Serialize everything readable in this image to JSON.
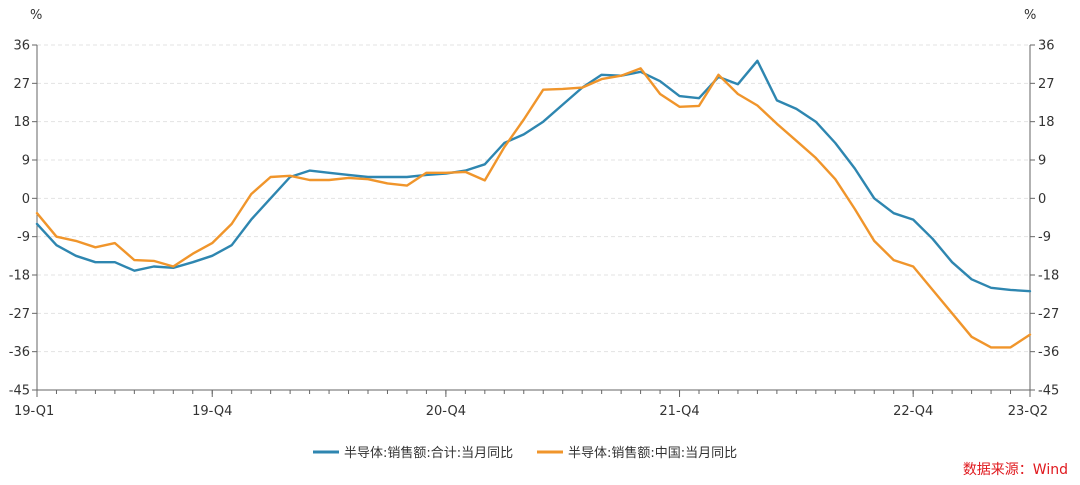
{
  "chart_data": {
    "type": "line",
    "left_unit": "%",
    "right_unit": "%",
    "y_ticks": [
      "36",
      "27",
      "18",
      "9",
      "0",
      "-9",
      "-18",
      "-27",
      "-36",
      "-45"
    ],
    "ylim": [
      -45,
      36
    ],
    "x_tick_labels": [
      "19-Q1",
      "19-Q4",
      "20-Q4",
      "21-Q4",
      "22-Q4",
      "23-Q2"
    ],
    "x_tick_index": [
      0,
      9,
      21,
      33,
      45,
      51
    ],
    "n_points": 52,
    "grid": "horizontal dashed",
    "legend_position": "bottom",
    "series": [
      {
        "name": "半导体:销售额:合计:当月同比",
        "color": "#2e86b0",
        "values": [
          -6,
          -11,
          -13.5,
          -15,
          -15,
          -17,
          -16,
          -16.3,
          -15,
          -13.5,
          -11,
          -5,
          0,
          5,
          6.5,
          6,
          5.5,
          5,
          5,
          5,
          5.5,
          5.8,
          6.5,
          8,
          13,
          15,
          18,
          22,
          26,
          29,
          28.8,
          29.7,
          27.5,
          24,
          23.5,
          28.5,
          26.8,
          32.3,
          23,
          21,
          18,
          13,
          7,
          0,
          -3.5,
          -5,
          -9.5,
          -15,
          -19,
          -21,
          -21.5,
          -21.8
        ]
      },
      {
        "name": "半导体:销售额:中国:当月同比",
        "color": "#f0952b",
        "values": [
          -3.5,
          -9,
          -10,
          -11.5,
          -10.5,
          -14.5,
          -14.7,
          -16,
          -13,
          -10.5,
          -6,
          1,
          5,
          5.3,
          4.3,
          4.3,
          4.8,
          4.5,
          3.5,
          3,
          6,
          6,
          6.2,
          4.2,
          12,
          18.5,
          25.5,
          25.7,
          26,
          28,
          28.8,
          30.5,
          24.5,
          21.5,
          21.7,
          29,
          24.5,
          21.8,
          17.5,
          13.5,
          9.5,
          4.5,
          -2.5,
          -10,
          -14.5,
          -16,
          -21.5,
          -27,
          -32.5,
          -35,
          -35,
          -32
        ]
      }
    ]
  },
  "source_label": "数据来源：Wind"
}
